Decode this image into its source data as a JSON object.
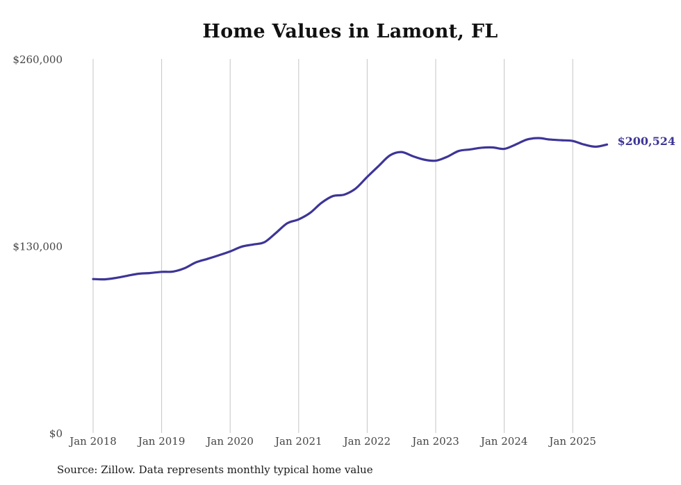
{
  "chart_data": {
    "type": "line",
    "title": "Home Values in Lamont, FL",
    "xlabel": "",
    "ylabel": "",
    "ylim": [
      0,
      260000
    ],
    "y_ticks": [
      {
        "value": 0,
        "label": "$0"
      },
      {
        "value": 130000,
        "label": "$130,000"
      },
      {
        "value": 260000,
        "label": "$260,000"
      }
    ],
    "x_ticks": [
      {
        "value": 2018,
        "label": "Jan 2018"
      },
      {
        "value": 2019,
        "label": "Jan 2019"
      },
      {
        "value": 2020,
        "label": "Jan 2020"
      },
      {
        "value": 2021,
        "label": "Jan 2021"
      },
      {
        "value": 2022,
        "label": "Jan 2022"
      },
      {
        "value": 2023,
        "label": "Jan 2023"
      },
      {
        "value": 2024,
        "label": "Jan 2024"
      },
      {
        "value": 2025,
        "label": "Jan 2025"
      }
    ],
    "grid": "vertical",
    "legend": "none",
    "line_color": "#3d3597",
    "end_label": "$200,524",
    "series": [
      {
        "x": [
          "2018-01",
          "2018-03",
          "2018-05",
          "2018-07",
          "2018-09",
          "2018-11",
          "2019-01",
          "2019-03",
          "2019-05",
          "2019-07",
          "2019-09",
          "2019-11",
          "2020-01",
          "2020-03",
          "2020-05",
          "2020-07",
          "2020-09",
          "2020-11",
          "2021-01",
          "2021-03",
          "2021-05",
          "2021-07",
          "2021-09",
          "2021-11",
          "2022-01",
          "2022-03",
          "2022-05",
          "2022-07",
          "2022-09",
          "2022-11",
          "2023-01",
          "2023-03",
          "2023-05",
          "2023-07",
          "2023-09",
          "2023-11",
          "2024-01",
          "2024-03",
          "2024-05",
          "2024-07",
          "2024-09",
          "2024-11",
          "2025-01",
          "2025-03",
          "2025-05",
          "2025-07"
        ],
        "y": [
          107000,
          106800,
          107800,
          109300,
          110700,
          111200,
          112000,
          112200,
          114500,
          118600,
          121000,
          123500,
          126200,
          129500,
          131000,
          132600,
          139000,
          145800,
          148500,
          153000,
          160000,
          164700,
          165700,
          170000,
          178000,
          185600,
          193000,
          195300,
          192400,
          190000,
          189300,
          192000,
          196000,
          197100,
          198300,
          198500,
          197500,
          200500,
          204000,
          205000,
          204000,
          203500,
          203000,
          200500,
          199000,
          200524
        ]
      }
    ]
  },
  "source_note": "Source: Zillow. Data represents monthly typical home value"
}
